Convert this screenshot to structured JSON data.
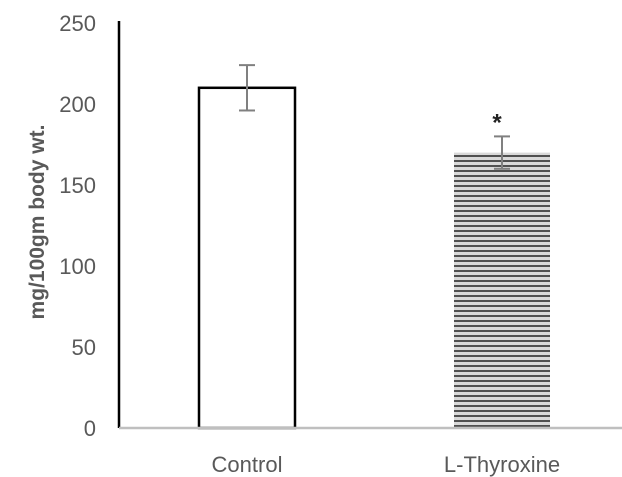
{
  "chart_data": {
    "type": "bar",
    "title": "",
    "xlabel": "",
    "ylabel": "mg/100gm body wt.",
    "categories": [
      "Control",
      "L-Thyroxine"
    ],
    "values": [
      210,
      170
    ],
    "errors": [
      14,
      10
    ],
    "annotations": [
      "",
      "*"
    ],
    "bar_fills": [
      "white",
      "horizontal-stripes"
    ],
    "ylim": [
      0,
      250
    ],
    "yticks": [
      0,
      50,
      100,
      150,
      200,
      250
    ],
    "ytick_labels": [
      "0",
      "50",
      "100",
      "150",
      "200",
      "250"
    ],
    "grid": false,
    "legend": "none",
    "colors": {
      "axis": "#000000",
      "baseline": "#bfbfbf",
      "bar_outline": "#000000",
      "stripe_dark": "#505050",
      "stripe_light": "#d9d9d9",
      "error_bar": "#808080",
      "text": "#595959"
    }
  }
}
